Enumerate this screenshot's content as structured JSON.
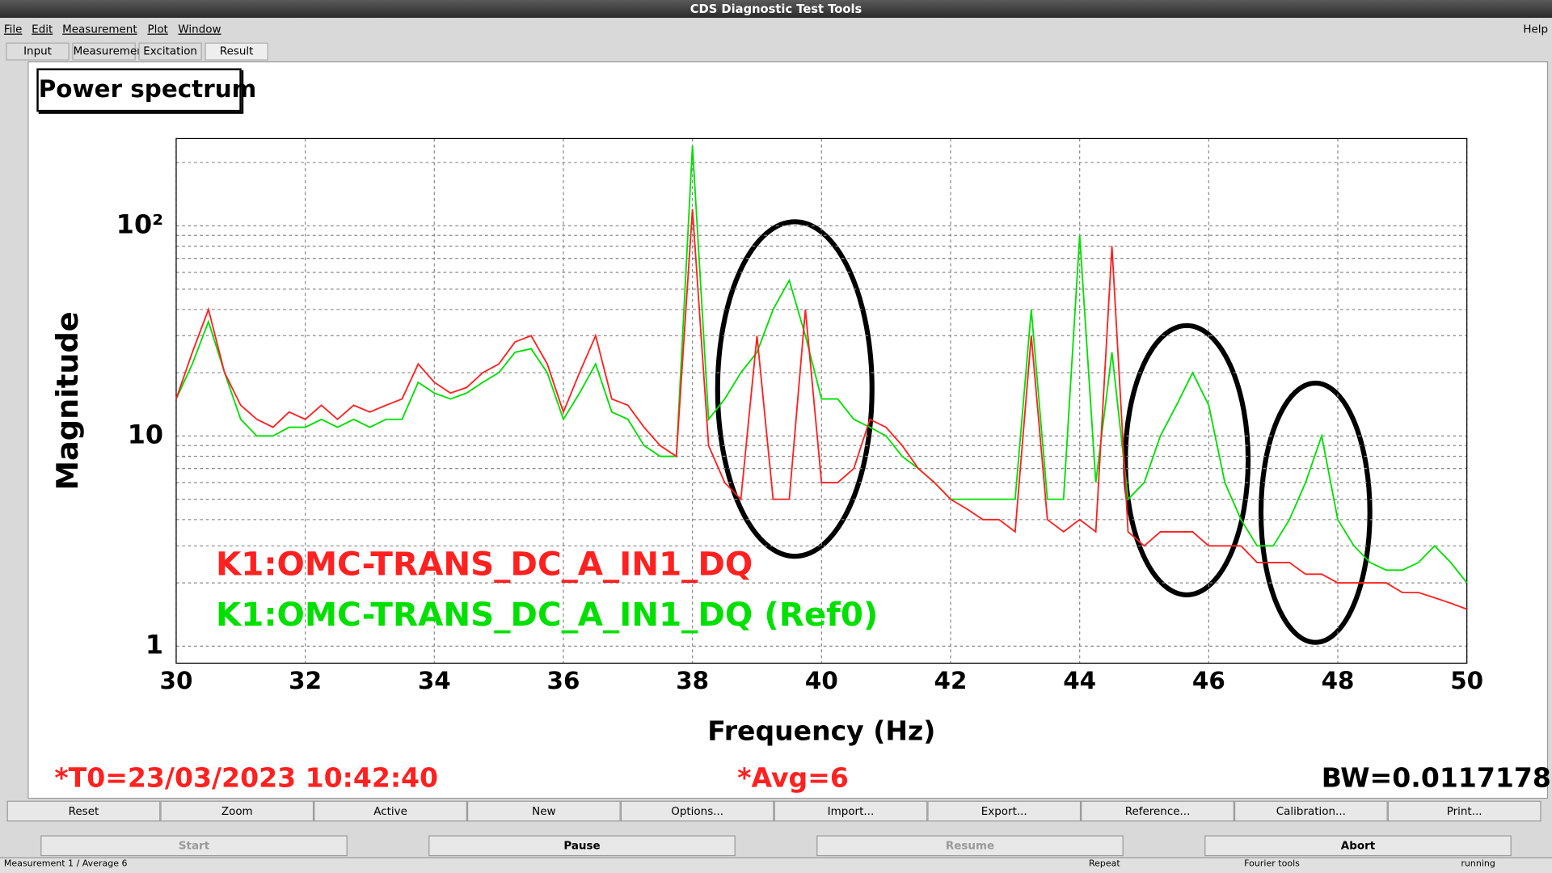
{
  "window": {
    "title": "CDS Diagnostic Test Tools",
    "menu": [
      "File",
      "Edit",
      "Measurement",
      "Plot",
      "Window"
    ],
    "help": "Help",
    "tabs": [
      "Input",
      "Measurement",
      "Excitation",
      "Result"
    ],
    "plot_title": "Power spectrum",
    "info": {
      "t0": "*T0=23/03/2023 10:42:40",
      "avg": "*Avg=6",
      "bw": "BW=0.0117178"
    },
    "buttons": [
      "Reset",
      "Zoom",
      "Active",
      "New",
      "Options...",
      "Import...",
      "Export...",
      "Reference...",
      "Calibration...",
      "Print..."
    ],
    "controls": [
      "Start",
      "Pause",
      "Resume",
      "Abort"
    ],
    "status": [
      "Measurement 1 / Average 6",
      "Repeat",
      "Fourier tools",
      "running"
    ]
  },
  "chart_data": {
    "type": "line",
    "xlabel": "Frequency (Hz)",
    "ylabel": "Magnitude",
    "log_y": true,
    "grid": true,
    "xlim": [
      30,
      50
    ],
    "xticks": [
      30,
      32,
      34,
      36,
      38,
      40,
      42,
      44,
      46,
      48,
      50
    ],
    "ylim": [
      0.83,
      260
    ],
    "yticks": [
      1,
      10,
      {
        "value": 100,
        "label": "10²"
      }
    ],
    "yminor_ticks": [
      2,
      3,
      4,
      5,
      6,
      7,
      8,
      9,
      20,
      30,
      40,
      50,
      60,
      70,
      80,
      90,
      200
    ],
    "x": [
      30,
      30.25,
      30.5,
      30.75,
      31,
      31.25,
      31.5,
      31.75,
      32,
      32.25,
      32.5,
      32.75,
      33,
      33.25,
      33.5,
      33.75,
      34,
      34.25,
      34.5,
      34.75,
      35,
      35.25,
      35.5,
      35.75,
      36,
      36.25,
      36.5,
      36.75,
      37,
      37.25,
      37.5,
      37.75,
      38,
      38.25,
      38.5,
      38.75,
      39,
      39.25,
      39.5,
      39.75,
      40,
      40.25,
      40.5,
      40.75,
      41,
      41.25,
      41.5,
      41.75,
      42,
      42.25,
      42.5,
      42.75,
      43,
      43.25,
      43.5,
      43.75,
      44,
      44.25,
      44.5,
      44.75,
      45,
      45.25,
      45.5,
      45.75,
      46,
      46.25,
      46.5,
      46.75,
      47,
      47.25,
      47.5,
      47.75,
      48,
      48.25,
      48.5,
      48.75,
      49,
      49.25,
      49.5,
      49.75,
      50
    ],
    "series": [
      {
        "name": "K1:OMC-TRANS_DC_A_IN1_DQ (Ref0)",
        "color": "#00e000",
        "values": [
          15,
          22,
          35,
          20,
          12,
          10,
          10,
          11,
          11,
          12,
          11,
          12,
          11,
          12,
          12,
          18,
          16,
          15,
          16,
          18,
          20,
          25,
          26,
          20,
          12,
          16,
          22,
          13,
          12,
          9,
          8,
          8,
          240,
          12,
          15,
          20,
          25,
          40,
          55,
          30,
          15,
          15,
          12,
          11,
          10,
          8,
          7,
          6,
          5,
          5,
          5,
          5,
          5,
          40,
          5,
          5,
          90,
          6,
          25,
          5,
          6,
          10,
          14,
          20,
          14,
          6,
          4,
          3,
          3,
          4,
          6,
          10,
          4,
          3,
          2.5,
          2.3,
          2.3,
          2.5,
          3,
          2.5,
          2
        ]
      },
      {
        "name": "K1:OMC-TRANS_DC_A_IN1_DQ",
        "color": "#ff2020",
        "values": [
          15,
          25,
          40,
          20,
          14,
          12,
          11,
          13,
          12,
          14,
          12,
          14,
          13,
          14,
          15,
          22,
          18,
          16,
          17,
          20,
          22,
          28,
          30,
          22,
          13,
          20,
          30,
          15,
          14,
          11,
          9,
          8,
          120,
          9,
          6,
          5,
          30,
          5,
          5,
          40,
          6,
          6,
          7,
          12,
          11,
          9,
          7,
          6,
          5,
          4.5,
          4,
          4,
          3.5,
          30,
          4,
          3.5,
          4,
          3.5,
          80,
          3.5,
          3,
          3.5,
          3.5,
          3.5,
          3,
          3,
          3,
          2.5,
          2.5,
          2.5,
          2.2,
          2.2,
          2,
          2,
          2,
          2,
          1.8,
          1.8,
          1.7,
          1.6,
          1.5
        ]
      }
    ]
  }
}
